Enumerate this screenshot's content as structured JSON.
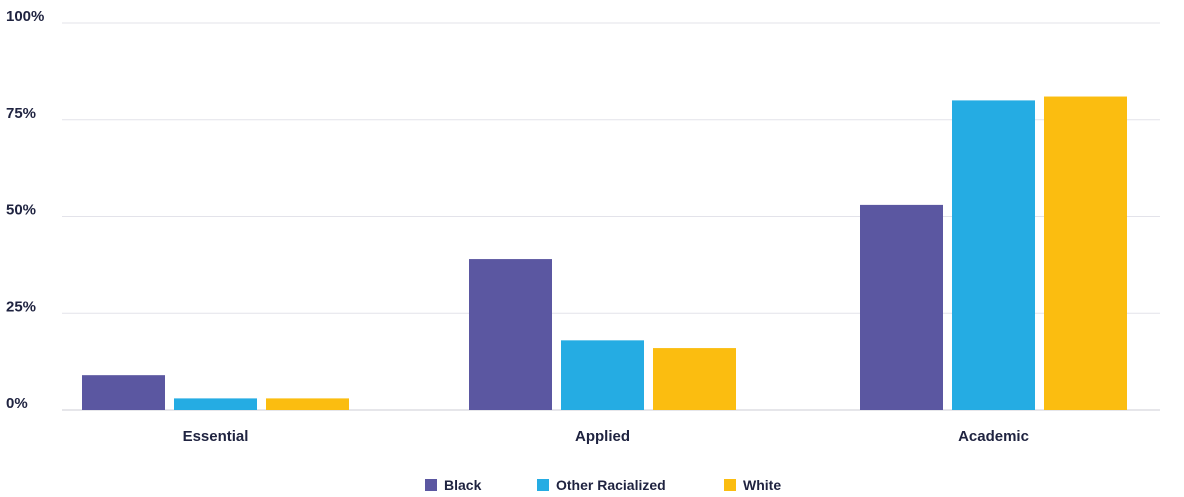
{
  "chart_data": {
    "type": "bar",
    "title": "",
    "xlabel": "",
    "ylabel": "",
    "categories": [
      "Essential",
      "Applied",
      "Academic"
    ],
    "ylim": [
      0,
      100
    ],
    "yticks": [
      0,
      25,
      50,
      75,
      100
    ],
    "ytick_labels": [
      "0%",
      "25%",
      "50%",
      "75%",
      "100%"
    ],
    "grid": true,
    "legend_position": "bottom-center",
    "series": [
      {
        "name": "Black",
        "color": "#5b57a1",
        "values": [
          9,
          39,
          53
        ]
      },
      {
        "name": "Other Racialized",
        "color": "#25ace3",
        "values": [
          3,
          18,
          80
        ]
      },
      {
        "name": "White",
        "color": "#fbbd10",
        "values": [
          3,
          16,
          81
        ]
      }
    ]
  }
}
